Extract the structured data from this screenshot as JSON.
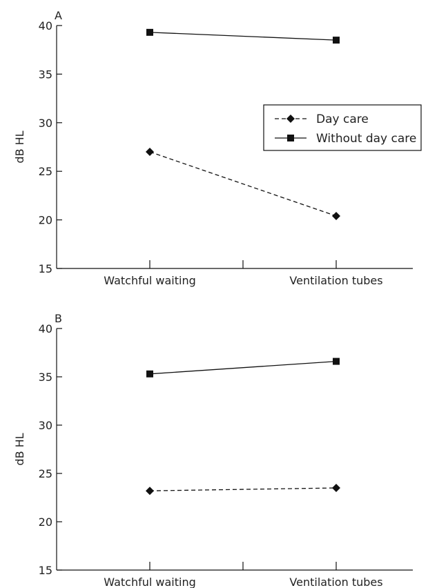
{
  "figure": {
    "colors": {
      "ink": "#111111",
      "text": "#222222",
      "background": "#ffffff"
    }
  },
  "chart_data": [
    {
      "type": "line",
      "panel_label": "A",
      "categories": [
        "Watchful waiting",
        "Ventilation tubes"
      ],
      "ylabel": "dB HL",
      "ylim": [
        15,
        40
      ],
      "yticks": [
        15,
        20,
        25,
        30,
        35,
        40
      ],
      "grid": false,
      "legend": {
        "placement": "right",
        "entries": [
          "Day care",
          "Without day care"
        ]
      },
      "series": [
        {
          "name": "Day care",
          "values": [
            27.0,
            20.4
          ],
          "marker": "diamond",
          "line_style": "dashed"
        },
        {
          "name": "Without day care",
          "values": [
            39.3,
            38.5
          ],
          "marker": "square",
          "line_style": "solid"
        }
      ]
    },
    {
      "type": "line",
      "panel_label": "B",
      "categories": [
        "Watchful waiting",
        "Ventilation tubes"
      ],
      "ylabel": "dB HL",
      "ylim": [
        15,
        40
      ],
      "yticks": [
        15,
        20,
        25,
        30,
        35,
        40
      ],
      "grid": false,
      "series": [
        {
          "name": "Day care",
          "values": [
            23.2,
            23.5
          ],
          "marker": "diamond",
          "line_style": "dashed"
        },
        {
          "name": "Without day care",
          "values": [
            35.3,
            36.6
          ],
          "marker": "square",
          "line_style": "solid"
        }
      ]
    }
  ]
}
